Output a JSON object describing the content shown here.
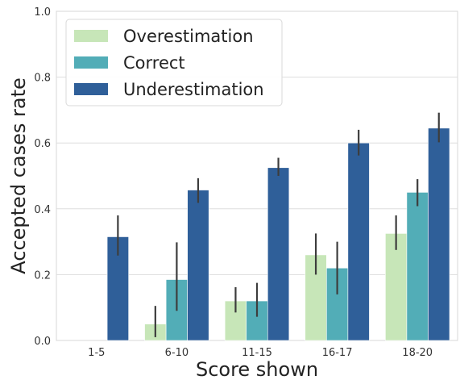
{
  "chart_data": {
    "type": "bar",
    "title": "",
    "xlabel": "Score shown",
    "ylabel": "Accepted cases rate",
    "categories": [
      "1-5",
      "6-10",
      "11-15",
      "16-17",
      "18-20"
    ],
    "ylim": [
      0,
      1.0
    ],
    "yticks": [
      "0.0",
      "0.2",
      "0.4",
      "0.6",
      "0.8",
      "1.0"
    ],
    "grid": "horizontal",
    "legend_position": "top-left",
    "series": [
      {
        "name": "Overestimation",
        "color": "#c7e6b8",
        "values": [
          null,
          0.05,
          0.12,
          0.26,
          0.325
        ],
        "err_low": [
          null,
          0.01,
          0.085,
          0.2,
          0.275
        ],
        "err_high": [
          null,
          0.105,
          0.162,
          0.325,
          0.38
        ]
      },
      {
        "name": "Correct",
        "color": "#52adb7",
        "values": [
          null,
          0.185,
          0.12,
          0.22,
          0.45
        ],
        "err_low": [
          null,
          0.09,
          0.072,
          0.14,
          0.408
        ],
        "err_high": [
          null,
          0.298,
          0.175,
          0.3,
          0.49
        ]
      },
      {
        "name": "Underestimation",
        "color": "#2f5f99",
        "values": [
          0.315,
          0.457,
          0.525,
          0.6,
          0.645
        ],
        "err_low": [
          0.258,
          0.418,
          0.5,
          0.562,
          0.602
        ],
        "err_high": [
          0.38,
          0.493,
          0.555,
          0.64,
          0.692
        ]
      }
    ]
  }
}
